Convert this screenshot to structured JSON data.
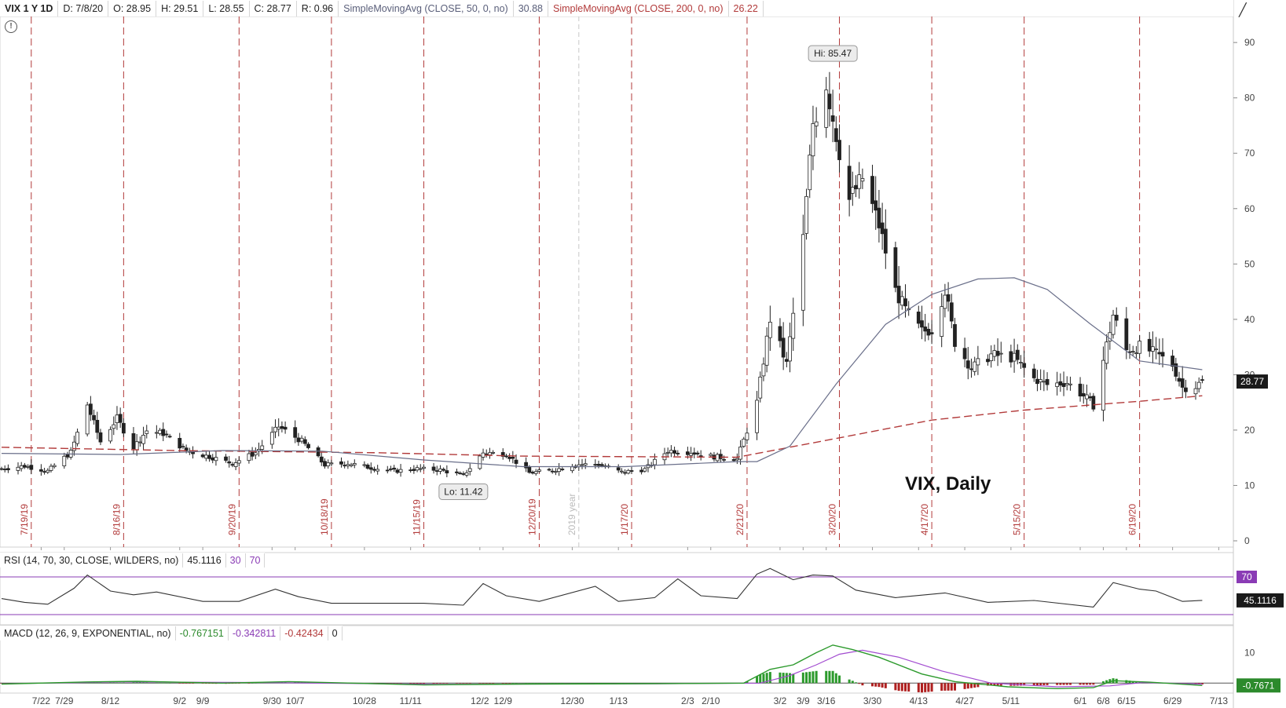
{
  "header": {
    "symbol": "VIX 1 Y 1D",
    "date": "D: 7/8/20",
    "open": "O: 28.95",
    "high": "H: 29.51",
    "low": "L: 28.55",
    "close": "C: 28.77",
    "range": "R: 0.96",
    "sma50_label": "SimpleMovingAvg (CLOSE, 50, 0, no)",
    "sma50_value": "30.88",
    "sma200_label": "SimpleMovingAvg (CLOSE, 200, 0, no)",
    "sma200_value": "26.22"
  },
  "rsi_header": {
    "label": "RSI (14, 70, 30, CLOSE, WILDERS, no)",
    "value": "45.1116",
    "oversold": "30",
    "overbought": "70"
  },
  "macd_header": {
    "label": "MACD (12, 26, 9, EXPONENTIAL, no)",
    "value": "-0.767151",
    "avg": "-0.342811",
    "diff": "-0.42434",
    "zero": "0"
  },
  "icons": {
    "alert": "alert-icon",
    "draw": "drawing-tool-icon"
  },
  "colors": {
    "candle": "#222222",
    "sma50": "#6a6f8a",
    "sma200": "#b23a3a",
    "event_line": "#b23a3a",
    "rsi_line": "#333333",
    "rsi_bounds": "#8a3bb5",
    "macd_line": "#2c9a2c",
    "macd_avg": "#a24bd0",
    "hist_pos": "#2c9a2c",
    "hist_neg": "#b02020"
  },
  "chart_data": {
    "type": "candlestick",
    "title": "VIX, Daily",
    "ylim": [
      0,
      93
    ],
    "y_ticks": [
      0,
      10,
      20,
      30,
      40,
      50,
      60,
      70,
      80,
      90
    ],
    "x_range": [
      "2019-07-10",
      "2020-07-16"
    ],
    "x_ticks": [
      {
        "date": "2019-07-22",
        "label": "7/22"
      },
      {
        "date": "2019-07-29",
        "label": "7/29"
      },
      {
        "date": "2019-08-12",
        "label": "8/12"
      },
      {
        "date": "2019-09-02",
        "label": "9/2"
      },
      {
        "date": "2019-09-09",
        "label": "9/9"
      },
      {
        "date": "2019-09-30",
        "label": "9/30"
      },
      {
        "date": "2019-10-07",
        "label": "10/7"
      },
      {
        "date": "2019-10-28",
        "label": "10/28"
      },
      {
        "date": "2019-11-11",
        "label": "11/11"
      },
      {
        "date": "2019-12-02",
        "label": "12/2"
      },
      {
        "date": "2019-12-09",
        "label": "12/9"
      },
      {
        "date": "2019-12-30",
        "label": "12/30"
      },
      {
        "date": "2020-01-13",
        "label": "1/13"
      },
      {
        "date": "2020-02-03",
        "label": "2/3"
      },
      {
        "date": "2020-02-10",
        "label": "2/10"
      },
      {
        "date": "2020-03-02",
        "label": "3/2"
      },
      {
        "date": "2020-03-09",
        "label": "3/9"
      },
      {
        "date": "2020-03-16",
        "label": "3/16"
      },
      {
        "date": "2020-03-30",
        "label": "3/30"
      },
      {
        "date": "2020-04-13",
        "label": "4/13"
      },
      {
        "date": "2020-04-27",
        "label": "4/27"
      },
      {
        "date": "2020-05-11",
        "label": "5/11"
      },
      {
        "date": "2020-06-01",
        "label": "6/1"
      },
      {
        "date": "2020-06-08",
        "label": "6/8"
      },
      {
        "date": "2020-06-15",
        "label": "6/15"
      },
      {
        "date": "2020-06-29",
        "label": "6/29"
      },
      {
        "date": "2020-07-13",
        "label": "7/13"
      }
    ],
    "event_lines": [
      {
        "date": "2019-07-19",
        "label": "7/19/19"
      },
      {
        "date": "2019-08-16",
        "label": "8/16/19"
      },
      {
        "date": "2019-09-20",
        "label": "9/20/19"
      },
      {
        "date": "2019-10-18",
        "label": "10/18/19"
      },
      {
        "date": "2019-11-15",
        "label": "11/15/19"
      },
      {
        "date": "2019-12-20",
        "label": "12/20/19"
      },
      {
        "date": "2020-01-17",
        "label": "1/17/20"
      },
      {
        "date": "2020-02-21",
        "label": "2/21/20"
      },
      {
        "date": "2020-03-20",
        "label": "3/20/20"
      },
      {
        "date": "2020-04-17",
        "label": "4/17/20"
      },
      {
        "date": "2020-05-15",
        "label": "5/15/20"
      },
      {
        "date": "2020-06-19",
        "label": "6/19/20"
      }
    ],
    "year_marker": {
      "date": "2020-01-01",
      "label": "2019 year"
    },
    "high_label": {
      "date": "2020-03-18",
      "value": 85.47,
      "label": "Hi: 85.47"
    },
    "low_label": {
      "date": "2019-11-27",
      "value": 11.42,
      "label": "Lo: 11.42"
    },
    "last_price": {
      "value": 28.77,
      "label": "28.77"
    },
    "closes": [
      [
        "2019-07-10",
        13.0
      ],
      [
        "2019-07-17",
        13.5
      ],
      [
        "2019-07-24",
        12.6
      ],
      [
        "2019-07-31",
        16.0
      ],
      [
        "2019-08-05",
        24.6
      ],
      [
        "2019-08-09",
        17.9
      ],
      [
        "2019-08-14",
        22.1
      ],
      [
        "2019-08-19",
        16.9
      ],
      [
        "2019-08-23",
        19.9
      ],
      [
        "2019-08-28",
        19.4
      ],
      [
        "2019-09-04",
        16.3
      ],
      [
        "2019-09-11",
        15.2
      ],
      [
        "2019-09-18",
        14.0
      ],
      [
        "2019-09-25",
        15.9
      ],
      [
        "2019-10-02",
        20.6
      ],
      [
        "2019-10-09",
        18.0
      ],
      [
        "2019-10-16",
        13.7
      ],
      [
        "2019-10-23",
        14.0
      ],
      [
        "2019-10-30",
        13.2
      ],
      [
        "2019-11-06",
        12.6
      ],
      [
        "2019-11-13",
        13.0
      ],
      [
        "2019-11-20",
        12.8
      ],
      [
        "2019-11-27",
        11.8
      ],
      [
        "2019-12-03",
        15.9
      ],
      [
        "2019-12-10",
        15.7
      ],
      [
        "2019-12-17",
        12.3
      ],
      [
        "2019-12-24",
        12.7
      ],
      [
        "2019-12-31",
        13.8
      ],
      [
        "2020-01-07",
        13.8
      ],
      [
        "2020-01-14",
        12.4
      ],
      [
        "2020-01-21",
        12.9
      ],
      [
        "2020-01-28",
        16.3
      ],
      [
        "2020-02-04",
        16.0
      ],
      [
        "2020-02-11",
        15.2
      ],
      [
        "2020-02-18",
        14.8
      ],
      [
        "2020-02-24",
        25.0
      ],
      [
        "2020-02-28",
        40.1
      ],
      [
        "2020-03-04",
        31.9
      ],
      [
        "2020-03-09",
        54.5
      ],
      [
        "2020-03-12",
        75.5
      ],
      [
        "2020-03-16",
        82.7
      ],
      [
        "2020-03-18",
        76.5
      ],
      [
        "2020-03-23",
        61.6
      ],
      [
        "2020-03-27",
        65.5
      ],
      [
        "2020-04-01",
        57.0
      ],
      [
        "2020-04-06",
        45.2
      ],
      [
        "2020-04-09",
        41.7
      ],
      [
        "2020-04-14",
        37.8
      ],
      [
        "2020-04-17",
        38.2
      ],
      [
        "2020-04-21",
        45.4
      ],
      [
        "2020-04-24",
        35.9
      ],
      [
        "2020-04-29",
        31.2
      ],
      [
        "2020-05-05",
        33.6
      ],
      [
        "2020-05-12",
        33.0
      ],
      [
        "2020-05-18",
        29.3
      ],
      [
        "2020-05-22",
        28.2
      ],
      [
        "2020-05-28",
        28.6
      ],
      [
        "2020-06-03",
        25.7
      ],
      [
        "2020-06-05",
        24.5
      ],
      [
        "2020-06-11",
        40.8
      ],
      [
        "2020-06-15",
        34.4
      ],
      [
        "2020-06-19",
        35.1
      ],
      [
        "2020-06-24",
        33.8
      ],
      [
        "2020-06-29",
        31.8
      ],
      [
        "2020-07-02",
        27.7
      ],
      [
        "2020-07-06",
        27.9
      ],
      [
        "2020-07-08",
        28.8
      ]
    ],
    "sma50": [
      [
        "2019-07-10",
        15.8
      ],
      [
        "2019-08-15",
        15.6
      ],
      [
        "2019-09-15",
        16.3
      ],
      [
        "2019-10-15",
        16.2
      ],
      [
        "2019-11-15",
        14.6
      ],
      [
        "2019-12-15",
        13.4
      ],
      [
        "2020-01-15",
        13.4
      ],
      [
        "2020-02-18",
        14.3
      ],
      [
        "2020-02-24",
        14.3
      ],
      [
        "2020-03-05",
        17.1
      ],
      [
        "2020-03-19",
        28.3
      ],
      [
        "2020-04-03",
        39.1
      ],
      [
        "2020-04-17",
        44.5
      ],
      [
        "2020-05-01",
        47.3
      ],
      [
        "2020-05-12",
        47.5
      ],
      [
        "2020-05-22",
        45.4
      ],
      [
        "2020-06-04",
        39.2
      ],
      [
        "2020-06-19",
        32.5
      ],
      [
        "2020-07-08",
        30.9
      ]
    ],
    "sma200": [
      [
        "2019-07-10",
        16.9
      ],
      [
        "2019-09-01",
        16.3
      ],
      [
        "2019-11-01",
        15.9
      ],
      [
        "2019-12-15",
        15.3
      ],
      [
        "2020-02-18",
        15.1
      ],
      [
        "2020-03-20",
        18.6
      ],
      [
        "2020-04-17",
        21.8
      ],
      [
        "2020-05-15",
        23.6
      ],
      [
        "2020-06-19",
        25.2
      ],
      [
        "2020-07-08",
        26.2
      ]
    ],
    "rsi": {
      "ylim": [
        20,
        80
      ],
      "bounds": [
        30,
        70
      ],
      "values": [
        [
          "2019-07-10",
          47
        ],
        [
          "2019-07-17",
          43
        ],
        [
          "2019-07-24",
          41
        ],
        [
          "2019-08-01",
          58
        ],
        [
          "2019-08-05",
          72
        ],
        [
          "2019-08-12",
          55
        ],
        [
          "2019-08-19",
          51
        ],
        [
          "2019-08-26",
          54
        ],
        [
          "2019-09-09",
          44
        ],
        [
          "2019-09-20",
          44
        ],
        [
          "2019-10-01",
          57
        ],
        [
          "2019-10-08",
          49
        ],
        [
          "2019-10-18",
          42
        ],
        [
          "2019-11-01",
          42
        ],
        [
          "2019-11-15",
          42
        ],
        [
          "2019-11-27",
          40
        ],
        [
          "2019-12-03",
          63
        ],
        [
          "2019-12-10",
          50
        ],
        [
          "2019-12-20",
          44
        ],
        [
          "2020-01-06",
          60
        ],
        [
          "2020-01-13",
          44
        ],
        [
          "2020-01-24",
          48
        ],
        [
          "2020-01-31",
          68
        ],
        [
          "2020-02-07",
          50
        ],
        [
          "2020-02-18",
          47
        ],
        [
          "2020-02-24",
          73
        ],
        [
          "2020-02-28",
          79
        ],
        [
          "2020-03-06",
          67
        ],
        [
          "2020-03-12",
          72
        ],
        [
          "2020-03-18",
          71
        ],
        [
          "2020-03-25",
          56
        ],
        [
          "2020-04-06",
          48
        ],
        [
          "2020-04-21",
          53
        ],
        [
          "2020-05-04",
          43
        ],
        [
          "2020-05-18",
          45
        ],
        [
          "2020-06-05",
          38
        ],
        [
          "2020-06-11",
          64
        ],
        [
          "2020-06-19",
          57
        ],
        [
          "2020-06-24",
          55
        ],
        [
          "2020-07-02",
          44
        ],
        [
          "2020-07-08",
          45.1
        ]
      ],
      "last_label": "45.1116",
      "bound_label": "70"
    },
    "macd": {
      "ylim": [
        -2.5,
        14
      ],
      "y_ticks": [
        10
      ],
      "macd_line": [
        [
          "2019-07-10",
          -0.3
        ],
        [
          "2019-08-05",
          0.4
        ],
        [
          "2019-08-20",
          0.6
        ],
        [
          "2019-09-15",
          0.0
        ],
        [
          "2019-10-05",
          0.5
        ],
        [
          "2019-11-15",
          -0.6
        ],
        [
          "2019-12-15",
          -0.3
        ],
        [
          "2020-01-20",
          -0.2
        ],
        [
          "2020-02-20",
          0.0
        ],
        [
          "2020-02-28",
          4.5
        ],
        [
          "2020-03-06",
          6.0
        ],
        [
          "2020-03-13",
          10.0
        ],
        [
          "2020-03-18",
          12.5
        ],
        [
          "2020-03-24",
          11.0
        ],
        [
          "2020-04-01",
          8.5
        ],
        [
          "2020-04-14",
          3.0
        ],
        [
          "2020-04-24",
          0.5
        ],
        [
          "2020-05-10",
          -1.2
        ],
        [
          "2020-05-25",
          -1.8
        ],
        [
          "2020-06-05",
          -1.5
        ],
        [
          "2020-06-11",
          0.8
        ],
        [
          "2020-06-22",
          0.3
        ],
        [
          "2020-07-08",
          -0.77
        ]
      ],
      "signal_line": [
        [
          "2019-07-10",
          -0.2
        ],
        [
          "2019-08-15",
          0.4
        ],
        [
          "2019-09-25",
          0.2
        ],
        [
          "2019-11-20",
          -0.4
        ],
        [
          "2020-01-25",
          -0.2
        ],
        [
          "2020-02-25",
          0.0
        ],
        [
          "2020-03-05",
          2.5
        ],
        [
          "2020-03-13",
          6.0
        ],
        [
          "2020-03-20",
          9.5
        ],
        [
          "2020-03-27",
          10.8
        ],
        [
          "2020-04-07",
          8.5
        ],
        [
          "2020-04-20",
          4.0
        ],
        [
          "2020-05-05",
          0.0
        ],
        [
          "2020-05-25",
          -1.2
        ],
        [
          "2020-06-10",
          -0.9
        ],
        [
          "2020-06-20",
          0.2
        ],
        [
          "2020-07-08",
          -0.34
        ]
      ],
      "last_label": "-0.7671"
    }
  }
}
